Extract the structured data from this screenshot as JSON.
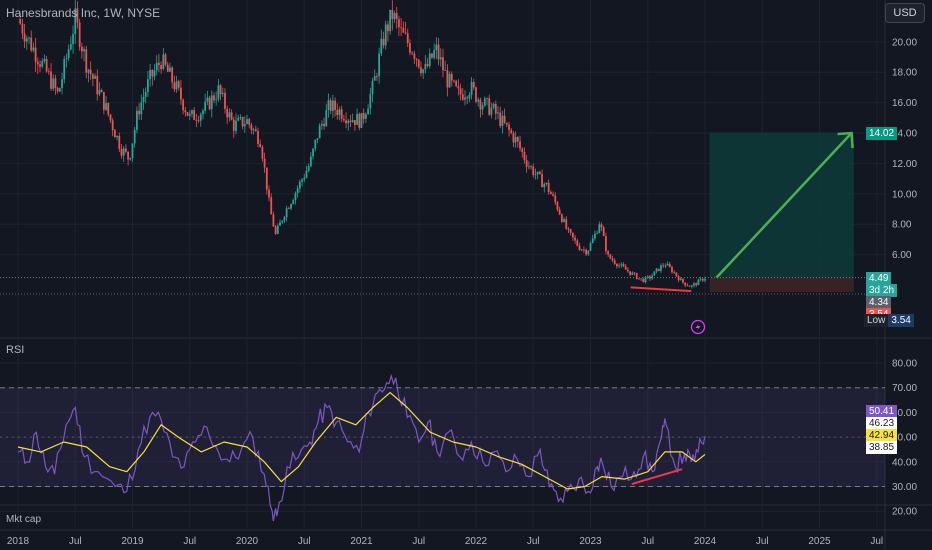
{
  "header": {
    "symbol_title": "Hanesbrands Inc, 1W, NYSE",
    "currency": "USD"
  },
  "panes": {
    "rsi_label": "RSI",
    "mktcap_label": "Mkt cap"
  },
  "colors": {
    "background": "#131722",
    "up_candle": "#26a69a",
    "down_candle": "#ef5350",
    "rsi_line": "#7e57c2",
    "rsi_ma": "#f7e23d",
    "target_zone": "#0d3b3a",
    "stop_zone": "#3d2326",
    "arrow": "#4caf50",
    "divergence": "#f23645"
  },
  "chart_data": [
    {
      "type": "candlestick",
      "title": "Hanesbrands Inc, 1W, NYSE",
      "x_ticks": [
        "2018",
        "Jul",
        "2019",
        "Jul",
        "2020",
        "Jul",
        "2021",
        "Jul",
        "2022",
        "Jul",
        "2023",
        "Jul",
        "2024",
        "Jul",
        "2025",
        "Jul"
      ],
      "y_ticks": [
        6.0,
        8.0,
        10.0,
        12.0,
        14.0,
        16.0,
        18.0,
        20.0
      ],
      "ylim": [
        2.3,
        22.5
      ],
      "price_path": [
        [
          2018.0,
          21.5
        ],
        [
          2018.1,
          20.0
        ],
        [
          2018.25,
          18.0
        ],
        [
          2018.35,
          16.5
        ],
        [
          2018.5,
          21.5
        ],
        [
          2018.6,
          18.5
        ],
        [
          2018.75,
          16.0
        ],
        [
          2018.9,
          13.0
        ],
        [
          2018.97,
          12.3
        ],
        [
          2019.05,
          15.5
        ],
        [
          2019.15,
          17.5
        ],
        [
          2019.25,
          18.8
        ],
        [
          2019.38,
          17.0
        ],
        [
          2019.5,
          15.0
        ],
        [
          2019.62,
          15.5
        ],
        [
          2019.75,
          16.8
        ],
        [
          2019.88,
          14.5
        ],
        [
          2020.0,
          14.8
        ],
        [
          2020.12,
          13.5
        ],
        [
          2020.2,
          9.0
        ],
        [
          2020.25,
          7.3
        ],
        [
          2020.33,
          8.8
        ],
        [
          2020.45,
          10.5
        ],
        [
          2020.55,
          12.0
        ],
        [
          2020.62,
          14.0
        ],
        [
          2020.72,
          15.8
        ],
        [
          2020.8,
          15.5
        ],
        [
          2020.9,
          15.0
        ],
        [
          2021.0,
          14.8
        ],
        [
          2021.1,
          17.0
        ],
        [
          2021.2,
          20.5
        ],
        [
          2021.27,
          21.8
        ],
        [
          2021.35,
          20.5
        ],
        [
          2021.45,
          19.5
        ],
        [
          2021.55,
          18.0
        ],
        [
          2021.65,
          19.5
        ],
        [
          2021.75,
          17.5
        ],
        [
          2021.85,
          16.5
        ],
        [
          2021.95,
          17.0
        ],
        [
          2022.05,
          16.0
        ],
        [
          2022.15,
          15.5
        ],
        [
          2022.25,
          14.5
        ],
        [
          2022.35,
          13.5
        ],
        [
          2022.45,
          12.0
        ],
        [
          2022.55,
          11.0
        ],
        [
          2022.62,
          10.5
        ],
        [
          2022.72,
          9.0
        ],
        [
          2022.8,
          7.5
        ],
        [
          2022.9,
          6.5
        ],
        [
          2022.97,
          6.2
        ],
        [
          2023.05,
          7.5
        ],
        [
          2023.08,
          8.2
        ],
        [
          2023.15,
          5.9
        ],
        [
          2023.25,
          5.3
        ],
        [
          2023.35,
          4.8
        ],
        [
          2023.45,
          4.3
        ],
        [
          2023.52,
          4.5
        ],
        [
          2023.6,
          5.1
        ],
        [
          2023.65,
          5.4
        ],
        [
          2023.72,
          4.9
        ],
        [
          2023.8,
          4.2
        ],
        [
          2023.88,
          3.9
        ],
        [
          2023.94,
          4.2
        ],
        [
          2024.0,
          4.49
        ]
      ],
      "last_price": 4.49,
      "price_labels": [
        {
          "value": "14.02",
          "kind": "target"
        },
        {
          "value": "4.49",
          "kind": "last"
        },
        {
          "value": "3d 2h",
          "kind": "countdown"
        },
        {
          "value": "4.34",
          "kind": "gray"
        },
        {
          "value": "3.54",
          "kind": "stop"
        }
      ],
      "low_label": {
        "text": "Low",
        "value": "3.54"
      },
      "annotations": {
        "target": 14.02,
        "entry": 4.49,
        "stop": 3.54,
        "zone_start": 2024.04,
        "zone_end": 2025.3,
        "arrow_from": [
          2024.1,
          4.49
        ],
        "arrow_to": [
          2025.28,
          14.0
        ],
        "divergence_line": [
          [
            2023.35,
            3.85
          ],
          [
            2023.88,
            3.6
          ]
        ]
      }
    },
    {
      "type": "line",
      "title": "RSI",
      "y_ticks": [
        20.0,
        30.0,
        40.0,
        50.0,
        60.0,
        70.0,
        80.0
      ],
      "ylim": [
        14,
        84
      ],
      "band": [
        30,
        70
      ],
      "middle": 50,
      "series": [
        {
          "name": "RSI",
          "values": [
            [
              2018.0,
              44
            ],
            [
              2018.08,
              40
            ],
            [
              2018.16,
              52
            ],
            [
              2018.24,
              38
            ],
            [
              2018.32,
              35
            ],
            [
              2018.42,
              55
            ],
            [
              2018.5,
              62
            ],
            [
              2018.58,
              42
            ],
            [
              2018.7,
              36
            ],
            [
              2018.85,
              30
            ],
            [
              2018.95,
              28
            ],
            [
              2019.05,
              45
            ],
            [
              2019.15,
              58
            ],
            [
              2019.25,
              57
            ],
            [
              2019.35,
              42
            ],
            [
              2019.45,
              38
            ],
            [
              2019.55,
              48
            ],
            [
              2019.65,
              54
            ],
            [
              2019.75,
              44
            ],
            [
              2019.85,
              40
            ],
            [
              2019.95,
              45
            ],
            [
              2020.05,
              50
            ],
            [
              2020.15,
              35
            ],
            [
              2020.22,
              20
            ],
            [
              2020.26,
              18
            ],
            [
              2020.35,
              38
            ],
            [
              2020.45,
              42
            ],
            [
              2020.55,
              48
            ],
            [
              2020.62,
              56
            ],
            [
              2020.7,
              62
            ],
            [
              2020.78,
              56
            ],
            [
              2020.88,
              48
            ],
            [
              2020.98,
              44
            ],
            [
              2021.06,
              60
            ],
            [
              2021.14,
              68
            ],
            [
              2021.22,
              72
            ],
            [
              2021.3,
              74
            ],
            [
              2021.4,
              58
            ],
            [
              2021.5,
              48
            ],
            [
              2021.58,
              56
            ],
            [
              2021.66,
              44
            ],
            [
              2021.76,
              52
            ],
            [
              2021.86,
              42
            ],
            [
              2021.96,
              48
            ],
            [
              2022.06,
              40
            ],
            [
              2022.16,
              44
            ],
            [
              2022.26,
              36
            ],
            [
              2022.36,
              41
            ],
            [
              2022.46,
              34
            ],
            [
              2022.56,
              45
            ],
            [
              2022.64,
              30
            ],
            [
              2022.72,
              24
            ],
            [
              2022.8,
              28
            ],
            [
              2022.9,
              33
            ],
            [
              2022.98,
              28
            ],
            [
              2023.06,
              38
            ],
            [
              2023.1,
              40
            ],
            [
              2023.18,
              30
            ],
            [
              2023.28,
              34
            ],
            [
              2023.38,
              36
            ],
            [
              2023.46,
              42
            ],
            [
              2023.54,
              36
            ],
            [
              2023.62,
              50
            ],
            [
              2023.66,
              55
            ],
            [
              2023.74,
              38
            ],
            [
              2023.82,
              43
            ],
            [
              2023.88,
              40
            ],
            [
              2023.94,
              44
            ],
            [
              2024.0,
              50.41
            ]
          ]
        },
        {
          "name": "RSI-based MA",
          "values": [
            [
              2018.0,
              46
            ],
            [
              2018.2,
              44
            ],
            [
              2018.4,
              48
            ],
            [
              2018.6,
              46
            ],
            [
              2018.8,
              38
            ],
            [
              2018.95,
              36
            ],
            [
              2019.1,
              44
            ],
            [
              2019.25,
              55
            ],
            [
              2019.4,
              50
            ],
            [
              2019.6,
              44
            ],
            [
              2019.8,
              48
            ],
            [
              2020.0,
              46
            ],
            [
              2020.15,
              40
            ],
            [
              2020.3,
              32
            ],
            [
              2020.45,
              38
            ],
            [
              2020.6,
              48
            ],
            [
              2020.78,
              58
            ],
            [
              2020.95,
              55
            ],
            [
              2021.1,
              62
            ],
            [
              2021.25,
              68
            ],
            [
              2021.4,
              62
            ],
            [
              2021.6,
              52
            ],
            [
              2021.8,
              48
            ],
            [
              2022.0,
              46
            ],
            [
              2022.2,
              42
            ],
            [
              2022.4,
              39
            ],
            [
              2022.6,
              34
            ],
            [
              2022.8,
              29
            ],
            [
              2022.95,
              30
            ],
            [
              2023.1,
              34
            ],
            [
              2023.3,
              33
            ],
            [
              2023.5,
              36
            ],
            [
              2023.65,
              44
            ],
            [
              2023.8,
              44
            ],
            [
              2023.92,
              40
            ],
            [
              2024.0,
              42.94
            ]
          ]
        }
      ],
      "value_labels": [
        "50.41",
        "46.23",
        "42.94",
        "38.85"
      ],
      "divergence_line": [
        [
          2023.36,
          31
        ],
        [
          2023.8,
          37
        ]
      ]
    }
  ]
}
